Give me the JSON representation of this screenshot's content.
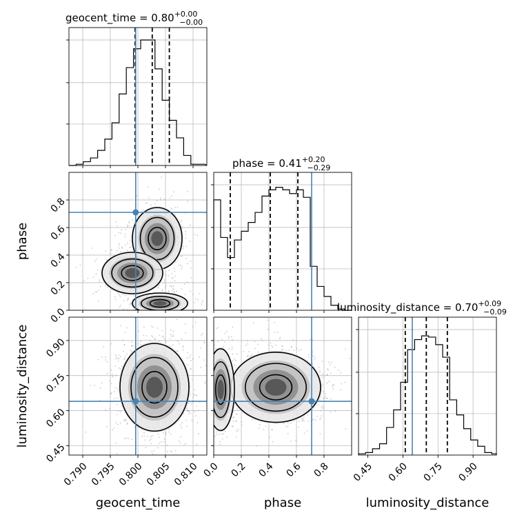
{
  "chart_data": {
    "type": "corner",
    "parameters": [
      {
        "name": "geocent_time",
        "label": "geocent_time",
        "title": "geocent_time = 0.80",
        "title_upper": "+0.00",
        "title_lower": "−0.00",
        "range": [
          0.7875,
          0.8125
        ],
        "ticks": [
          0.79,
          0.795,
          0.8,
          0.805,
          0.81
        ],
        "tick_labels": [
          "0.790",
          "0.795",
          "0.800",
          "0.805",
          "0.810"
        ],
        "quantiles": [
          0.7995,
          0.8026,
          0.8057
        ],
        "truth": 0.7996,
        "histogram": {
          "bin_edges": [
            0.7875,
            0.7888,
            0.7901,
            0.7914,
            0.7927,
            0.794,
            0.7953,
            0.7966,
            0.7979,
            0.7992,
            0.8005,
            0.8018,
            0.8031,
            0.8044,
            0.8057,
            0.807,
            0.8083,
            0.8096,
            0.8109,
            0.8122
          ],
          "counts": [
            0.0,
            0.01,
            0.03,
            0.06,
            0.12,
            0.21,
            0.34,
            0.57,
            0.78,
            0.93,
            1.0,
            1.0,
            0.77,
            0.52,
            0.36,
            0.22,
            0.08,
            0.01,
            0.01
          ]
        }
      },
      {
        "name": "phase",
        "label": "phase",
        "title": "phase = 0.41",
        "title_upper": "+0.20",
        "title_lower": "−0.29",
        "range": [
          0.0,
          1.0
        ],
        "ticks": [
          0.0,
          0.2,
          0.4,
          0.6,
          0.8
        ],
        "tick_labels": [
          "0.0",
          "0.2",
          "0.4",
          "0.6",
          "0.8"
        ],
        "quantiles": [
          0.12,
          0.41,
          0.61
        ],
        "truth": 0.71,
        "histogram": {
          "bin_edges": [
            0.0,
            0.05,
            0.1,
            0.15,
            0.2,
            0.25,
            0.3,
            0.35,
            0.4,
            0.45,
            0.5,
            0.55,
            0.6,
            0.65,
            0.7,
            0.75,
            0.8,
            0.85,
            0.9,
            0.95,
            1.0
          ],
          "counts": [
            0.88,
            0.58,
            0.42,
            0.56,
            0.63,
            0.7,
            0.78,
            0.91,
            0.96,
            0.98,
            0.96,
            0.93,
            0.96,
            0.9,
            0.35,
            0.19,
            0.11,
            0.04,
            0.01,
            0.0
          ]
        }
      },
      {
        "name": "luminosity_distance",
        "label": "luminosity_distance",
        "title": "luminosity_distance = 0.70",
        "title_upper": "+0.09",
        "title_lower": "−0.09",
        "range": [
          0.41,
          1.0
        ],
        "ticks": [
          0.45,
          0.6,
          0.75,
          0.9
        ],
        "tick_labels": [
          "0.45",
          "0.60",
          "0.75",
          "0.90"
        ],
        "quantiles": [
          0.61,
          0.7,
          0.79
        ],
        "truth": 0.64,
        "histogram": {
          "bin_edges": [
            0.41,
            0.44,
            0.47,
            0.5,
            0.53,
            0.56,
            0.59,
            0.62,
            0.65,
            0.68,
            0.71,
            0.74,
            0.77,
            0.8,
            0.83,
            0.86,
            0.89,
            0.92,
            0.95,
            0.98,
            1.0
          ],
          "counts": [
            0.01,
            0.02,
            0.05,
            0.09,
            0.22,
            0.36,
            0.58,
            0.84,
            0.92,
            0.95,
            0.94,
            0.88,
            0.78,
            0.44,
            0.32,
            0.21,
            0.12,
            0.07,
            0.02,
            0.01
          ]
        }
      }
    ],
    "truths": [
      0.7996,
      0.71,
      0.64
    ],
    "grid": true,
    "contour_levels": [
      0.39,
      0.86,
      0.99
    ]
  }
}
